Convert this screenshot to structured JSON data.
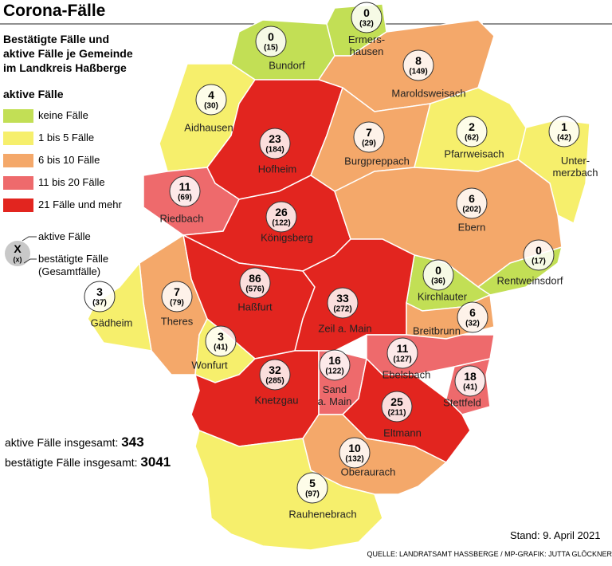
{
  "header": {
    "title": "Corona-Fälle",
    "subtitle": "Bestätigte Fälle und\naktive Fälle je Gemeinde\nim Landkreis Haßberge"
  },
  "legend": {
    "title": "aktive Fälle",
    "items": [
      {
        "label": "keine Fälle",
        "color": "#c2df55"
      },
      {
        "label": "1 bis 5 Fälle",
        "color": "#f6ef6c"
      },
      {
        "label": "6 bis 10 Fälle",
        "color": "#f4a86a"
      },
      {
        "label": "11 bis 20 Fälle",
        "color": "#ee6a6c"
      },
      {
        "label": "21 Fälle und mehr",
        "color": "#e2251f"
      }
    ],
    "key": {
      "symbol": "X",
      "symbol_sub": "(x)",
      "active": "aktive Fälle",
      "confirmed": "bestätigte Fälle\n(Gesamtfälle)"
    }
  },
  "municipalities": [
    {
      "name": "Bundorf",
      "active": 0,
      "confirmed": "(15)",
      "color": "#c2df55"
    },
    {
      "name": "Ermers-\nhausen",
      "active": 0,
      "confirmed": "(32)",
      "color": "#c2df55"
    },
    {
      "name": "Maroldsweisach",
      "active": 8,
      "confirmed": "(149)",
      "color": "#f4a86a"
    },
    {
      "name": "Aidhausen",
      "active": 4,
      "confirmed": "(30)",
      "color": "#f6ef6c"
    },
    {
      "name": "Hofheim",
      "active": 23,
      "confirmed": "(184)",
      "color": "#e2251f"
    },
    {
      "name": "Burgpreppach",
      "active": 7,
      "confirmed": "(29)",
      "color": "#f4a86a"
    },
    {
      "name": "Pfarrweisach",
      "active": 2,
      "confirmed": "(62)",
      "color": "#f6ef6c"
    },
    {
      "name": "Unter-\nmerzbach",
      "active": 1,
      "confirmed": "(42)",
      "color": "#f6ef6c"
    },
    {
      "name": "Riedbach",
      "active": 11,
      "confirmed": "(69)",
      "color": "#ee6a6c"
    },
    {
      "name": "Königsberg",
      "active": 26,
      "confirmed": "(122)",
      "color": "#e2251f"
    },
    {
      "name": "Ebern",
      "active": 6,
      "confirmed": "(202)",
      "color": "#f4a86a"
    },
    {
      "name": "Rentweinsdorf",
      "active": 0,
      "confirmed": "(17)",
      "color": "#c2df55"
    },
    {
      "name": "Kirchlauter",
      "active": 0,
      "confirmed": "(36)",
      "color": "#c2df55"
    },
    {
      "name": "Haßfurt",
      "active": 86,
      "confirmed": "(576)",
      "color": "#e2251f"
    },
    {
      "name": "Theres",
      "active": 7,
      "confirmed": "(79)",
      "color": "#f4a86a"
    },
    {
      "name": "Gädheim",
      "active": 3,
      "confirmed": "(37)",
      "color": "#f6ef6c"
    },
    {
      "name": "Zeil a. Main",
      "active": 33,
      "confirmed": "(272)",
      "color": "#e2251f"
    },
    {
      "name": "Breitbrunn",
      "active": 6,
      "confirmed": "(32)",
      "color": "#f4a86a"
    },
    {
      "name": "Wonfurt",
      "active": 3,
      "confirmed": "(41)",
      "color": "#f6ef6c"
    },
    {
      "name": "Ebelsbach",
      "active": 11,
      "confirmed": "(127)",
      "color": "#ee6a6c"
    },
    {
      "name": "Stettfeld",
      "active": 18,
      "confirmed": "(41)",
      "color": "#ee6a6c"
    },
    {
      "name": "Knetzgau",
      "active": 32,
      "confirmed": "(285)",
      "color": "#e2251f"
    },
    {
      "name": "Sand\na. Main",
      "active": 16,
      "confirmed": "(122)",
      "color": "#ee6a6c"
    },
    {
      "name": "Eltmann",
      "active": 25,
      "confirmed": "(211)",
      "color": "#e2251f"
    },
    {
      "name": "Oberaurach",
      "active": 10,
      "confirmed": "(132)",
      "color": "#f4a86a"
    },
    {
      "name": "Rauhenebrach",
      "active": 5,
      "confirmed": "(97)",
      "color": "#f6ef6c"
    }
  ],
  "totals": {
    "active_label": "aktive Fälle insgesamt:",
    "active": 343,
    "confirmed_label": "bestätigte Fälle insgesamt:",
    "confirmed": 3041
  },
  "footer": {
    "date": "Stand: 9. April 2021",
    "source": "QUELLE: LANDRATSAMT HASSBERGE / MP-GRAFIK: JUTTA GLÖCKNER"
  }
}
